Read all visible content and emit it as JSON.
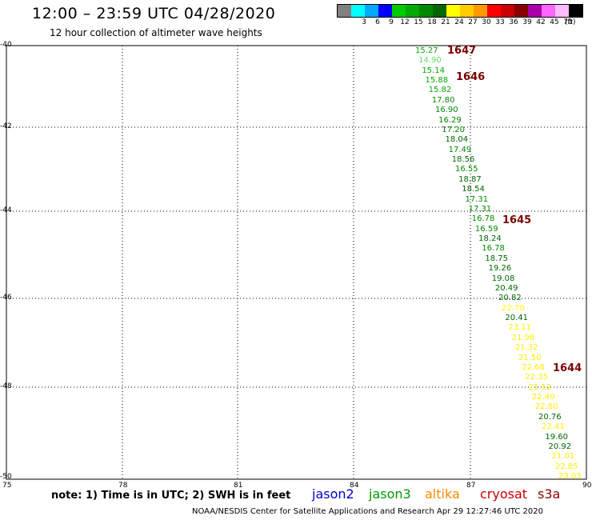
{
  "title": "12:00 – 23:59 UTC 04/28/2020",
  "subtitle": "12 hour collection of altimeter wave heights",
  "legend": {
    "swatches": [
      {
        "color": "#808080"
      },
      {
        "color": "#00ffff",
        "label": "3"
      },
      {
        "color": "#00aaff",
        "label": "6"
      },
      {
        "color": "#0000ff",
        "label": "9"
      },
      {
        "color": "#00cc00",
        "label": "12"
      },
      {
        "color": "#00aa00",
        "label": "15"
      },
      {
        "color": "#008800",
        "label": "18"
      },
      {
        "color": "#006600",
        "label": "21"
      },
      {
        "color": "#ffff00",
        "label": "24"
      },
      {
        "color": "#ffcc00",
        "label": "27"
      },
      {
        "color": "#ff9900",
        "label": "30"
      },
      {
        "color": "#ff0000",
        "label": "33"
      },
      {
        "color": "#cc0000",
        "label": "36"
      },
      {
        "color": "#880000",
        "label": "39"
      },
      {
        "color": "#aa00aa",
        "label": "42"
      },
      {
        "color": "#ff66ff",
        "label": "45"
      },
      {
        "color": "#ffbbff",
        "label": "70"
      },
      {
        "color": "#000000"
      }
    ],
    "unit": "(ft)"
  },
  "axes": {
    "x_ticks": [
      "75",
      "78",
      "81",
      "84",
      "87",
      "90"
    ],
    "y_ticks": [
      "-40",
      "-42",
      "-44",
      "-46",
      "-48",
      "-50"
    ]
  },
  "passes": [
    "1647",
    "1646",
    "1645",
    "1644"
  ],
  "waves": [
    {
      "v": "15.27",
      "c": "#00aa00"
    },
    {
      "v": "14.90",
      "c": "#66dd66"
    },
    {
      "v": "15.14",
      "c": "#00aa00"
    },
    {
      "v": "15.88",
      "c": "#00aa00"
    },
    {
      "v": "15.82",
      "c": "#00aa00"
    },
    {
      "v": "17.80",
      "c": "#008800"
    },
    {
      "v": "16.90",
      "c": "#008800"
    },
    {
      "v": "16.29",
      "c": "#008800"
    },
    {
      "v": "17.20",
      "c": "#008800"
    },
    {
      "v": "18.04",
      "c": "#006600"
    },
    {
      "v": "17.49",
      "c": "#008800"
    },
    {
      "v": "18.56",
      "c": "#006600"
    },
    {
      "v": "16.55",
      "c": "#008800"
    },
    {
      "v": "18.87",
      "c": "#006600"
    },
    {
      "v": "18.54",
      "c": "#006600"
    },
    {
      "v": "17.31",
      "c": "#008800"
    },
    {
      "v": "17.31",
      "c": "#008800"
    },
    {
      "v": "16.78",
      "c": "#008800"
    },
    {
      "v": "16.59",
      "c": "#008800"
    },
    {
      "v": "18.24",
      "c": "#006600"
    },
    {
      "v": "16.78",
      "c": "#008800"
    },
    {
      "v": "18.75",
      "c": "#006600"
    },
    {
      "v": "19.26",
      "c": "#006600"
    },
    {
      "v": "19.08",
      "c": "#006600"
    },
    {
      "v": "20.49",
      "c": "#006600"
    },
    {
      "v": "20.82",
      "c": "#006600"
    },
    {
      "v": "22.70",
      "c": "#ffff00"
    },
    {
      "v": "20.41",
      "c": "#006600"
    },
    {
      "v": "23.11",
      "c": "#ffee00"
    },
    {
      "v": "21.98",
      "c": "#ffee00"
    },
    {
      "v": "21.32",
      "c": "#ffee00"
    },
    {
      "v": "21.50",
      "c": "#ffee00"
    },
    {
      "v": "22.68",
      "c": "#ffee00"
    },
    {
      "v": "22.35",
      "c": "#ffee00"
    },
    {
      "v": "21.12",
      "c": "#ffee00"
    },
    {
      "v": "22.40",
      "c": "#ffee00"
    },
    {
      "v": "22.80",
      "c": "#ffee00"
    },
    {
      "v": "20.76",
      "c": "#006600"
    },
    {
      "v": "22.41",
      "c": "#ffee00"
    },
    {
      "v": "19.60",
      "c": "#006600"
    },
    {
      "v": "20.92",
      "c": "#006600"
    },
    {
      "v": "21.01",
      "c": "#ffee00"
    },
    {
      "v": "22.85",
      "c": "#ffee00"
    },
    {
      "v": "23.03",
      "c": "#ffee00"
    }
  ],
  "note": "note: 1) Time is in UTC; 2) SWH is in feet",
  "satellites": [
    {
      "name": "jason2",
      "color": "#0000cc"
    },
    {
      "name": "jason3",
      "color": "#009900"
    },
    {
      "name": "altika",
      "color": "#ff8800"
    },
    {
      "name": "cryosat",
      "color": "#cc0000"
    },
    {
      "name": "s3a",
      "color": "#8b0000"
    }
  ],
  "footer": "NOAA/NESDIS Center for Satellite Applications and Research    Apr 29 12:27:46 UTC 2020"
}
